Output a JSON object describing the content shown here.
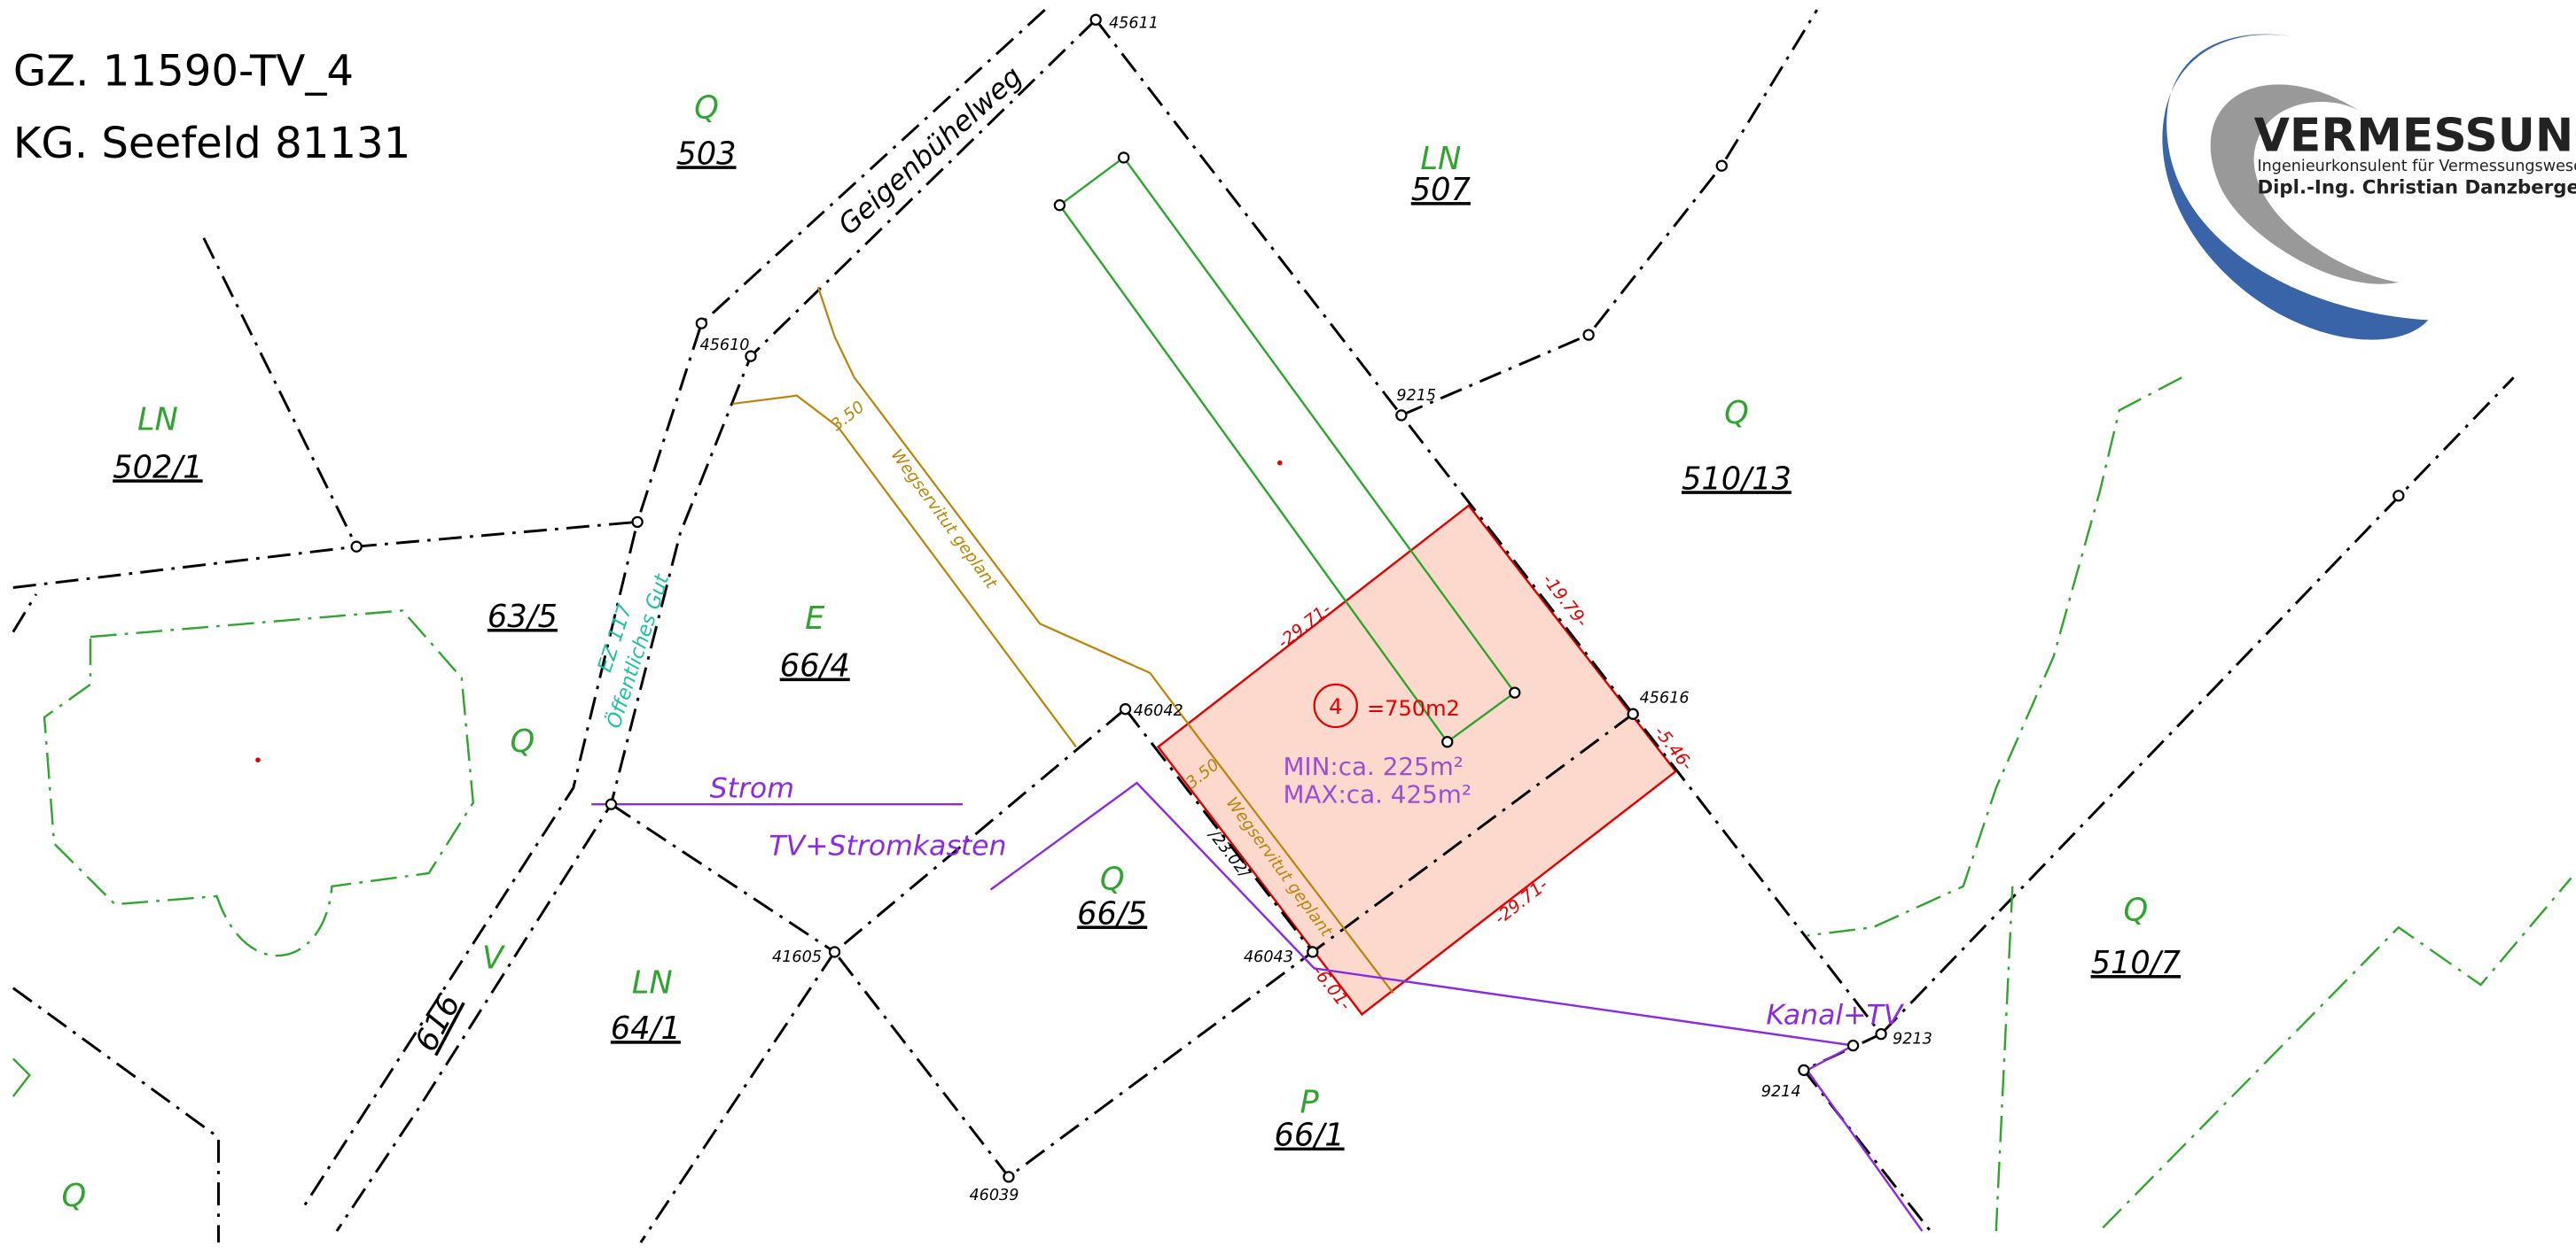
{
  "header": {
    "gz": "GZ. 11590-TV_4",
    "kg": "KG. Seefeld 81131"
  },
  "logo": {
    "name": "VERMESSUNG",
    "subtitle": "Ingenieurkonsulent für Vermessungswese",
    "owner": "Dipl.-Ing. Christian Danzberge"
  },
  "parcels": [
    {
      "use": "Q",
      "number": "503"
    },
    {
      "use": "LN",
      "number": "507"
    },
    {
      "use": "LN",
      "number": "502/1"
    },
    {
      "number": "63/5"
    },
    {
      "use": "E",
      "number": "66/4"
    },
    {
      "use": "Q"
    },
    {
      "use": "Q",
      "number": "510/13"
    },
    {
      "use": "Q",
      "number": "66/5"
    },
    {
      "use": "LN",
      "number": "64/1"
    },
    {
      "use": "P",
      "number": "66/1"
    },
    {
      "use": "Q",
      "number": "510/7"
    },
    {
      "use": "Q"
    },
    {
      "use": "V",
      "number": "616"
    }
  ],
  "street": "Geigenbühelweg",
  "public_land": {
    "ez": "EZ 117",
    "name": "Öffentliches Gut"
  },
  "points": [
    "45611",
    "45610",
    "9215",
    "46042",
    "45616",
    "41605",
    "46043",
    "9213",
    "9214",
    "46039"
  ],
  "dimensions": {
    "top": "-29.71-",
    "right": "-19.79-",
    "right_short": "-5.46-",
    "bottom": "-29.71-",
    "left_short": "-6.01-",
    "existing": "/23.02/"
  },
  "easement": {
    "width_1": "3.50",
    "width_2": "3.50",
    "label_1": "Wegservitut geplant",
    "label_2": "Wegservitut geplant"
  },
  "lot": {
    "number": "4",
    "area": "=750m2",
    "min": "MIN:ca. 225m²",
    "max": "MAX:ca. 425m²"
  },
  "utilities": {
    "power": "Strom",
    "box": "TV+Stromkasten",
    "sewer": "Kanal+TV"
  }
}
